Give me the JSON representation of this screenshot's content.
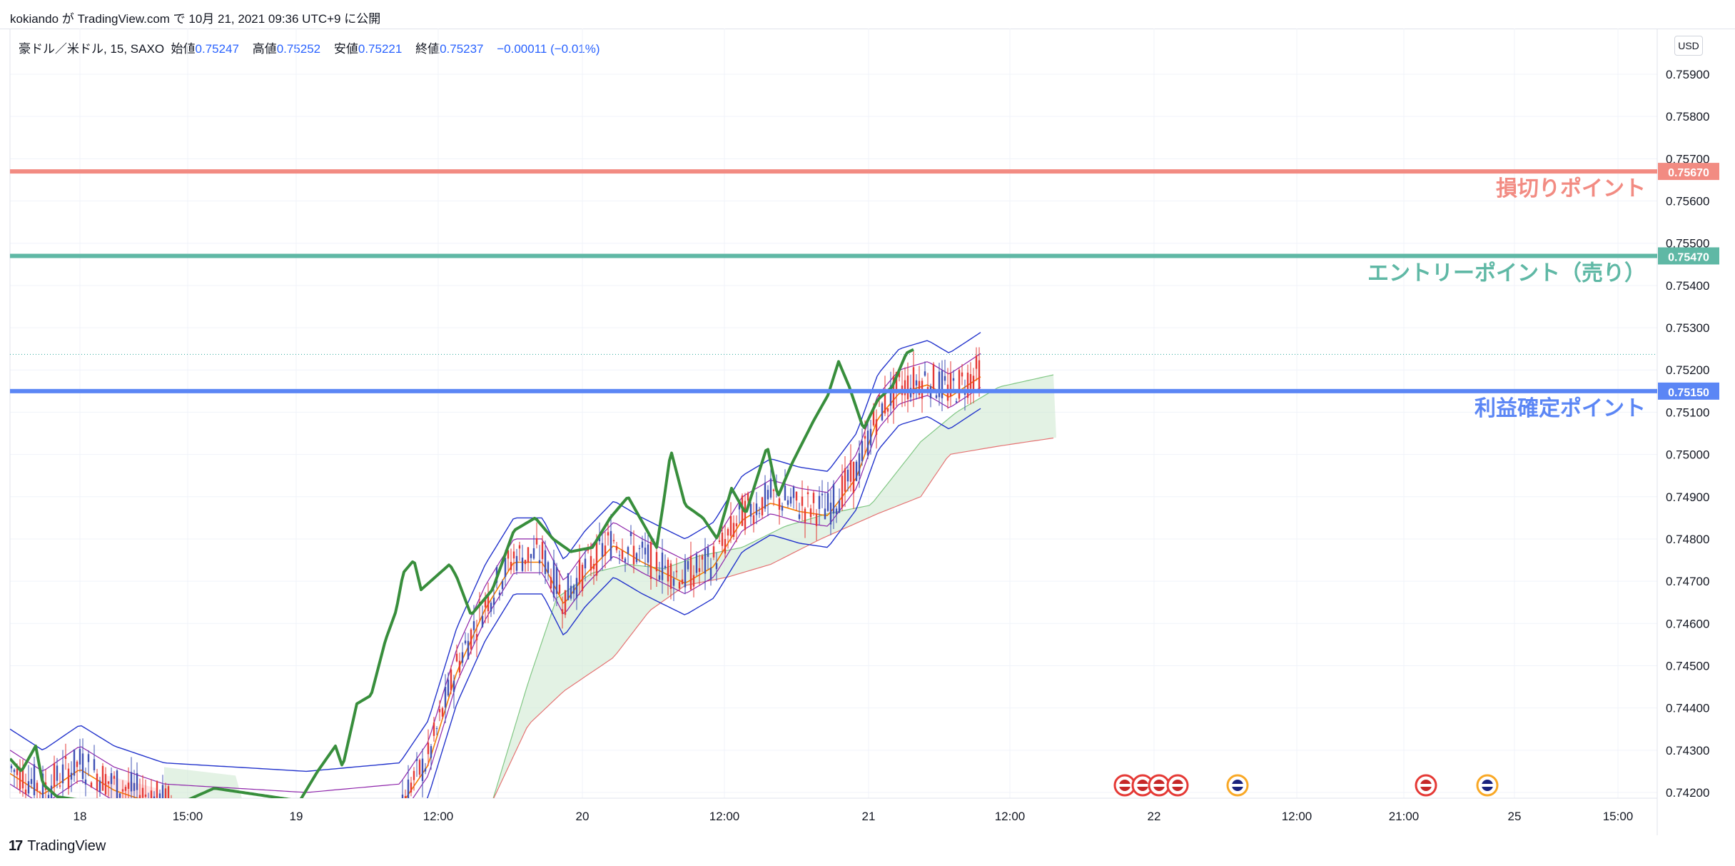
{
  "header": {
    "publish_line": "kokiando が TradingView.com で 10月 21, 2021 09:36 UTC+9 に公開"
  },
  "legend": {
    "symbol": "豪ドル／米ドル, 15, SAXO",
    "open_label": "始値",
    "open": "0.75247",
    "high_label": "高値",
    "high": "0.75252",
    "low_label": "安値",
    "low": "0.75221",
    "close_label": "終値",
    "close": "0.75237",
    "change": "−0.00011 (−0.01%)"
  },
  "currency_button": "USD",
  "footer": {
    "logo": "17",
    "brand": "TradingView"
  },
  "chart_data": {
    "type": "line",
    "y_ticks": [
      "0.75900",
      "0.75800",
      "0.75700",
      "0.75600",
      "0.75500",
      "0.75400",
      "0.75300",
      "0.75200",
      "0.75100",
      "0.75000",
      "0.74900",
      "0.74800",
      "0.74700",
      "0.74600",
      "0.74500",
      "0.74400",
      "0.74300",
      "0.74200"
    ],
    "x_ticks": [
      "18",
      "15:00",
      "19",
      "12:00",
      "20",
      "12:00",
      "21",
      "12:00",
      "22",
      "12:00",
      "21:00",
      "25",
      "15:00"
    ],
    "ylim": [
      0.7418,
      0.7594
    ],
    "levels": [
      {
        "name": "損切りポイント",
        "price": 0.7567,
        "tag": "0.75670",
        "color": "#f28b82"
      },
      {
        "name": "エントリーポイント（売り）",
        "price": 0.7547,
        "tag": "0.75470",
        "color": "#5fb8a5"
      },
      {
        "name": "利益確定ポイント",
        "price": 0.7515,
        "tag": "0.75150",
        "color": "#5b86f5"
      }
    ],
    "colors": {
      "chikou": "#388e3c",
      "bollinger": "#2233cc",
      "ema": "#f57c00",
      "mid": "#8e24aa",
      "kumo": "#c8e6c9",
      "up": "#3f51b5",
      "down": "#e53935"
    },
    "event_icons": [
      "us-flag-icon",
      "us-flag-icon",
      "us-flag-icon",
      "us-flag-icon",
      "au-flag-icon",
      "us-flag-icon",
      "eu-flag-icon"
    ]
  }
}
